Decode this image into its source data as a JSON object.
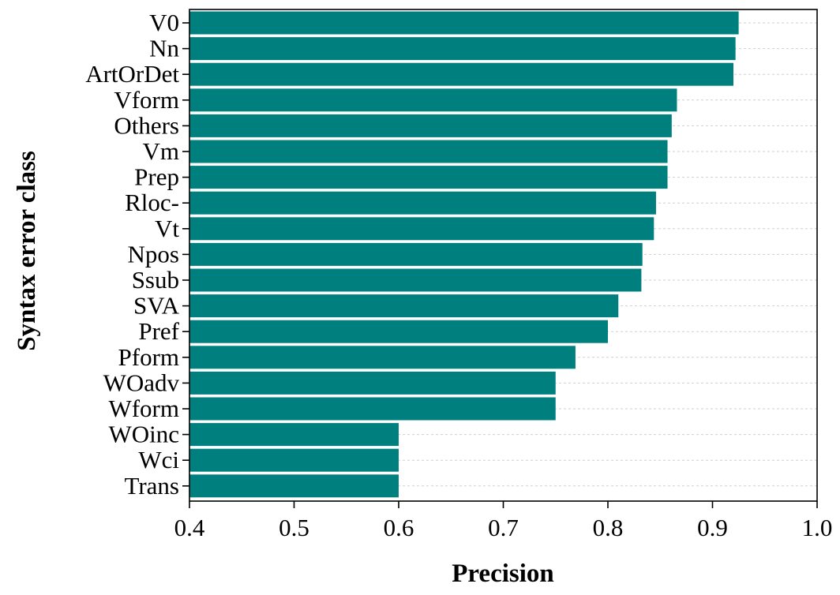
{
  "chart_data": {
    "type": "bar",
    "orientation": "horizontal",
    "categories": [
      "V0",
      "Nn",
      "ArtOrDet",
      "Vform",
      "Others",
      "Vm",
      "Prep",
      "Rloc-",
      "Vt",
      "Npos",
      "Ssub",
      "SVA",
      "Pref",
      "Pform",
      "WOadv",
      "Wform",
      "WOinc",
      "Wci",
      "Trans"
    ],
    "values": [
      0.925,
      0.922,
      0.92,
      0.866,
      0.861,
      0.857,
      0.857,
      0.846,
      0.844,
      0.833,
      0.832,
      0.81,
      0.8,
      0.769,
      0.75,
      0.75,
      0.6,
      0.6,
      0.6
    ],
    "xlabel": "Precision",
    "ylabel": "Syntax error class",
    "xlim": [
      0.4,
      1.0
    ],
    "xticks": [
      "0.4",
      "0.5",
      "0.6",
      "0.7",
      "0.8",
      "0.9",
      "1.0"
    ],
    "grid": "horizontal dashed",
    "bar_color": "#007f7f"
  }
}
